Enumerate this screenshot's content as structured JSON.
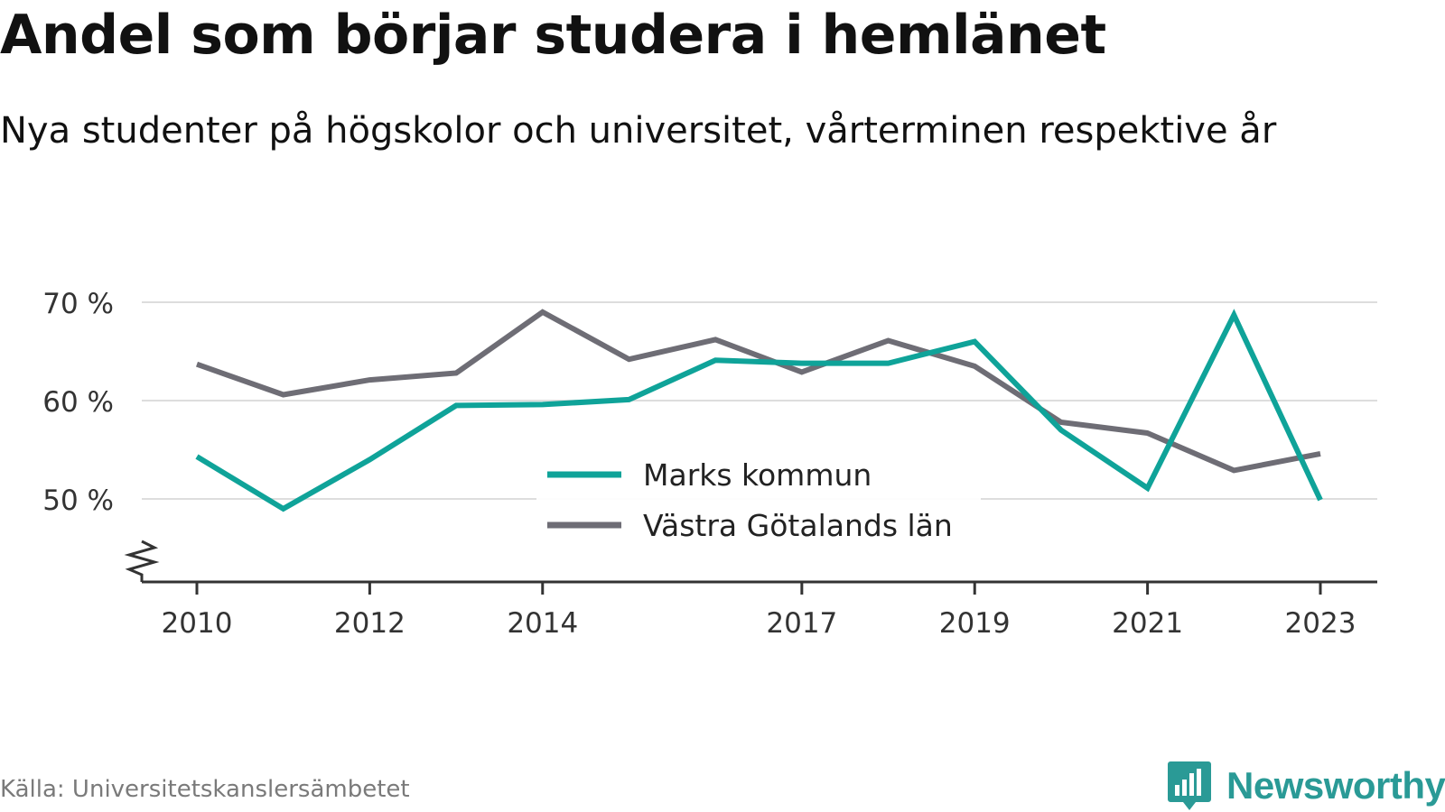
{
  "header": {
    "title": "Andel som börjar studera i hemlänet",
    "subtitle": "Nya studenter på högskolor och universitet, vårterminen respektive år"
  },
  "footer": {
    "source": "Källa: Universitetskanslersämbetet",
    "brand": "Newsworthy"
  },
  "colors": {
    "marks": "#0fa399",
    "vastra": "#6e6d75",
    "grid": "#dddddd",
    "axis": "#333333",
    "brand": "#2a9a96"
  },
  "icons": {
    "brand_logo": "newsworthy-logo-icon",
    "axis_break": "axis-break-icon"
  },
  "chart_data": {
    "type": "line",
    "title": "Andel som börjar studera i hemlänet",
    "subtitle": "Nya studenter på högskolor och universitet, vårterminen respektive år",
    "xlabel": "",
    "ylabel": "",
    "x": [
      2010,
      2011,
      2012,
      2013,
      2014,
      2015,
      2016,
      2017,
      2018,
      2019,
      2020,
      2021,
      2022,
      2023
    ],
    "x_ticks": [
      "2010",
      "2012",
      "2014",
      "2017",
      "2019",
      "2021",
      "2023"
    ],
    "x_tick_values": [
      2010,
      2012,
      2014,
      2017,
      2019,
      2021,
      2023
    ],
    "xlim": [
      2009.4,
      2023.65
    ],
    "y_ticks": [
      "50 %",
      "60 %",
      "70 %"
    ],
    "y_tick_values": [
      50,
      60,
      70
    ],
    "ylim": [
      41.5,
      71
    ],
    "y_axis_break": true,
    "grid": true,
    "legend": "center",
    "series": [
      {
        "name": "Marks kommun",
        "color": "#0fa399",
        "values": [
          54.3,
          49.0,
          54.0,
          59.5,
          59.6,
          60.1,
          64.1,
          63.8,
          63.8,
          66.0,
          57.0,
          51.1,
          68.7,
          49.9
        ]
      },
      {
        "name": "Västra Götalands län",
        "color": "#6e6d75",
        "values": [
          63.7,
          60.6,
          62.1,
          62.8,
          69.0,
          64.2,
          66.2,
          62.9,
          66.1,
          63.5,
          57.8,
          56.7,
          52.9,
          54.6
        ]
      }
    ]
  }
}
